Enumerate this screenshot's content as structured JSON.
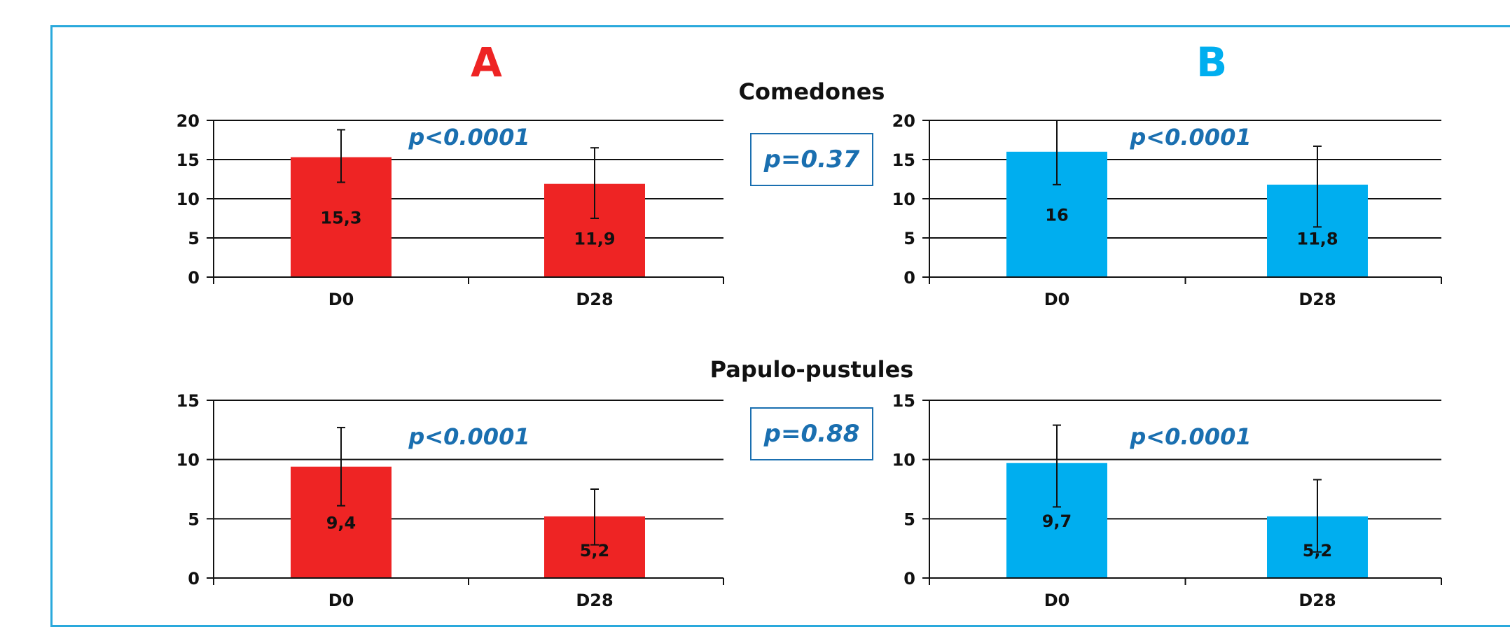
{
  "groups": {
    "a_label": "A",
    "b_label": "B",
    "a_color": "#ee2424",
    "b_color": "#00aeef"
  },
  "colors": {
    "frame": "#2aa9dc",
    "pvalue": "#1a6fb0",
    "axis": "#111111"
  },
  "sections": {
    "comedones": {
      "title": "Comedones",
      "between_p": "p=0.37"
    },
    "papulo": {
      "title": "Papulo-pustules",
      "between_p": "p=0.88"
    }
  },
  "chart_data": [
    {
      "type": "bar",
      "section": "Comedones",
      "group": "A",
      "categories": [
        "D0",
        "D28"
      ],
      "values": [
        15.3,
        11.9
      ],
      "value_labels": [
        "15,3",
        "11,9"
      ],
      "error_high": [
        18.8,
        16.5
      ],
      "error_low": [
        12.1,
        7.5
      ],
      "ylim": [
        0,
        20
      ],
      "yticks": [
        0,
        5,
        10,
        15,
        20
      ],
      "annotation": "p<0.0001",
      "grid": true
    },
    {
      "type": "bar",
      "section": "Comedones",
      "group": "B",
      "categories": [
        "D0",
        "D28"
      ],
      "values": [
        16,
        11.8
      ],
      "value_labels": [
        "16",
        "11,8"
      ],
      "error_high": [
        20,
        16.7
      ],
      "error_low": [
        11.8,
        6.4
      ],
      "ylim": [
        0,
        20
      ],
      "yticks": [
        0,
        5,
        10,
        15,
        20
      ],
      "annotation": "p<0.0001",
      "grid": true
    },
    {
      "type": "bar",
      "section": "Papulo-pustules",
      "group": "A",
      "categories": [
        "D0",
        "D28"
      ],
      "values": [
        9.4,
        5.2
      ],
      "value_labels": [
        "9,4",
        "5,2"
      ],
      "error_high": [
        12.7,
        7.5
      ],
      "error_low": [
        6.1,
        2.8
      ],
      "ylim": [
        0,
        15
      ],
      "yticks": [
        0,
        5,
        10,
        15
      ],
      "annotation": "p<0.0001",
      "grid": true
    },
    {
      "type": "bar",
      "section": "Papulo-pustules",
      "group": "B",
      "categories": [
        "D0",
        "D28"
      ],
      "values": [
        9.7,
        5.2
      ],
      "value_labels": [
        "9,7",
        "5,2"
      ],
      "error_high": [
        12.9,
        8.3
      ],
      "error_low": [
        6.0,
        2.2
      ],
      "ylim": [
        0,
        15
      ],
      "yticks": [
        0,
        5,
        10,
        15
      ],
      "annotation": "p<0.0001",
      "grid": true
    }
  ]
}
